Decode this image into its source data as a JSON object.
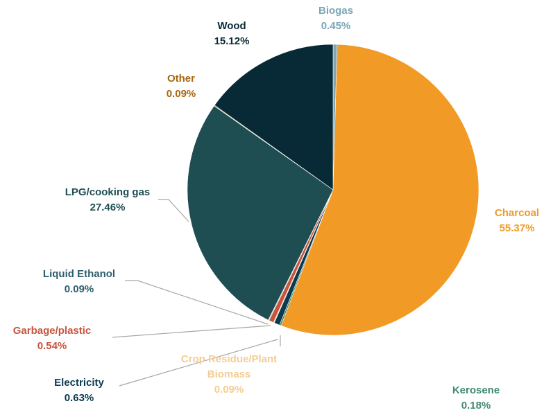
{
  "chart_data": {
    "type": "pie",
    "title": "",
    "slices": [
      {
        "name": "Biogas",
        "value": 0.45,
        "label": "0.45%",
        "color": "#7aa6b8",
        "label_color": "#7aa6b8"
      },
      {
        "name": "Charcoal",
        "value": 55.37,
        "label": "55.37%",
        "color": "#f29a26",
        "label_color": "#f29a26"
      },
      {
        "name": "Kerosene",
        "value": 0.18,
        "label": "0.18%",
        "color": "#3f8a6e",
        "label_color": "#3f8a6e"
      },
      {
        "name": "Electricity",
        "value": 0.63,
        "label": "0.63%",
        "color": "#0d3a4f",
        "label_color": "#0d3a4f"
      },
      {
        "name": "Crop Residue/Plant Biomass",
        "value": 0.09,
        "label": "0.09%",
        "color": "#f5cc91",
        "label_color": "#f5cc91"
      },
      {
        "name": "Garbage/plastic",
        "value": 0.54,
        "label": "0.54%",
        "color": "#c8553d",
        "label_color": "#c8553d"
      },
      {
        "name": "Liquid Ethanol",
        "value": 0.09,
        "label": "0.09%",
        "color": "#9fb6bf",
        "label_color": "#2e5e6e"
      },
      {
        "name": "LPG/cooking gas",
        "value": 27.46,
        "label": "27.46%",
        "color": "#1e4e52",
        "label_color": "#1e4e52"
      },
      {
        "name": "Other",
        "value": 0.09,
        "label": "0.09%",
        "color": "#b07a2a",
        "label_color": "#a8660f"
      },
      {
        "name": "Wood",
        "value": 15.12,
        "label": "15.12%",
        "color": "#072a36",
        "label_color": "#072a36"
      }
    ],
    "legend": "none",
    "data_labels": "outside with leader lines"
  }
}
